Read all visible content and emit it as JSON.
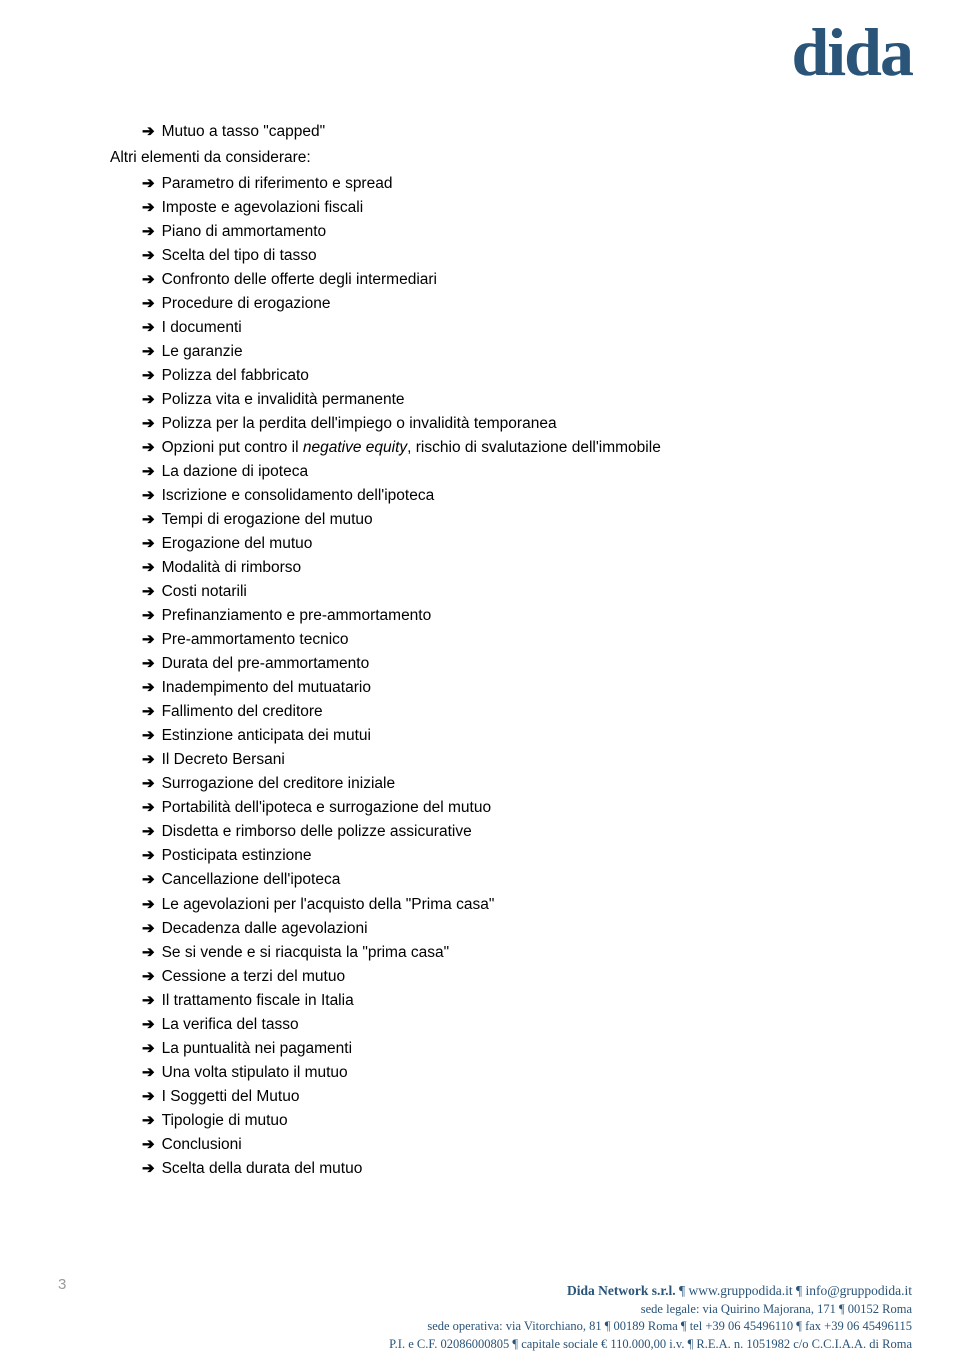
{
  "logo": {
    "text": "dida"
  },
  "colors": {
    "brand": "#2a5478",
    "text": "#000000",
    "page_number": "#9a9a9a",
    "background": "#ffffff"
  },
  "typography": {
    "body_font": "Verdana",
    "body_size_pt": 12,
    "footer_font": "Georgia",
    "logo_size_pt": 52
  },
  "top_items": [
    "Mutuo a tasso \"capped\""
  ],
  "section_label": "Altri elementi da considerare:",
  "items": [
    {
      "text": "Parametro di riferimento e spread"
    },
    {
      "text": "Imposte e agevolazioni fiscali"
    },
    {
      "text": "Piano di ammortamento"
    },
    {
      "text": "Scelta del tipo di tasso"
    },
    {
      "text": "Confronto delle offerte degli intermediari"
    },
    {
      "text": "Procedure di erogazione"
    },
    {
      "text": "I documenti"
    },
    {
      "text": "Le garanzie"
    },
    {
      "text": "Polizza del fabbricato"
    },
    {
      "text": "Polizza vita e invalidità permanente"
    },
    {
      "text": "Polizza per la perdita dell'impiego o invalidità temporanea"
    },
    {
      "text_pre": "Opzioni put contro il ",
      "text_italic": "negative equity",
      "text_post": ", rischio di svalutazione dell'immobile"
    },
    {
      "text": "La dazione di ipoteca"
    },
    {
      "text": "Iscrizione e consolidamento dell'ipoteca"
    },
    {
      "text": "Tempi di erogazione del mutuo"
    },
    {
      "text": "Erogazione del mutuo"
    },
    {
      "text": "Modalità di rimborso"
    },
    {
      "text": "Costi notarili"
    },
    {
      "text": "Prefinanziamento e pre-ammortamento"
    },
    {
      "text": "Pre-ammortamento tecnico"
    },
    {
      "text": "Durata del pre-ammortamento"
    },
    {
      "text": "Inadempimento del mutuatario"
    },
    {
      "text": "Fallimento del creditore"
    },
    {
      "text": "Estinzione anticipata dei mutui"
    },
    {
      "text": "Il Decreto Bersani"
    },
    {
      "text": "Surrogazione del creditore iniziale"
    },
    {
      "text": "Portabilità dell'ipoteca e surrogazione del mutuo"
    },
    {
      "text": "Disdetta e rimborso delle polizze assicurative"
    },
    {
      "text": "Posticipata estinzione"
    },
    {
      "text": "Cancellazione dell'ipoteca"
    },
    {
      "text": "Le agevolazioni per l'acquisto della \"Prima casa\""
    },
    {
      "text": "Decadenza dalle agevolazioni"
    },
    {
      "text": "Se si vende e si riacquista la \"prima casa\""
    },
    {
      "text": "Cessione a terzi del mutuo"
    },
    {
      "text": "Il trattamento fiscale in Italia"
    },
    {
      "text": "La verifica del tasso"
    },
    {
      "text": "La puntualità nei pagamenti"
    },
    {
      "text": "Una volta stipulato il mutuo"
    },
    {
      "text": "I Soggetti del Mutuo"
    },
    {
      "text": "Tipologie di mutuo"
    },
    {
      "text": "Conclusioni"
    },
    {
      "text": "Scelta della durata del mutuo"
    }
  ],
  "page_number": "3",
  "footer": {
    "company_bold": "Dida Network s.r.l.",
    "company_rest": " ¶ www.gruppodida.it ¶ info@gruppodida.it",
    "line2": "sede legale: via Quirino Majorana, 171 ¶ 00152 Roma",
    "line3": "sede operativa: via Vitorchiano, 81 ¶ 00189 Roma ¶ tel +39 06 45496110 ¶ fax +39 06 45496115",
    "line4": "P.I. e C.F. 02086000805 ¶ capitale sociale € 110.000,00 i.v. ¶ R.E.A. n. 1051982 c/o C.C.I.A.A. di Roma"
  }
}
